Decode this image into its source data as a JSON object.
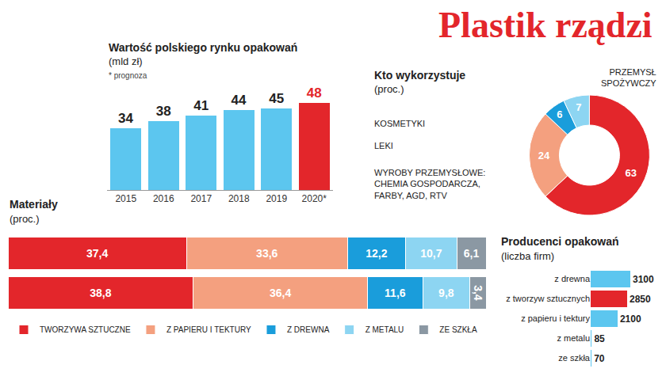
{
  "title": "Plastik rządzi",
  "chart_data": [
    {
      "type": "bar",
      "title": "Wartość polskiego rynku opakowań",
      "subtitle": "(mld zł)",
      "annotations": [
        "* prognoza"
      ],
      "categories": [
        "2015",
        "2016",
        "2017",
        "2018",
        "2019",
        "2020*"
      ],
      "values": [
        34,
        38,
        41,
        44,
        45,
        48
      ],
      "colors": [
        "#5cc6ef",
        "#5cc6ef",
        "#5cc6ef",
        "#5cc6ef",
        "#5cc6ef",
        "#e3262b"
      ],
      "ylim": [
        0,
        50
      ],
      "data_labels": true,
      "tick_labels": "x",
      "grid": false
    },
    {
      "type": "pie",
      "title": "Kto wykorzystuje",
      "subtitle": "(proc.)",
      "categories": [
        "PRZEMYSŁ SPOŻYWCZY",
        "WYROBY PRZEMYSŁOWE: CHEMIA GOSPODARCZA, FARBY, AGD, RTV",
        "LEKI",
        "KOSMETYKI"
      ],
      "values": [
        63,
        24,
        6,
        7
      ],
      "colors": [
        "#e3262b",
        "#f4a07f",
        "#1a9ddb",
        "#8dd5f2"
      ],
      "data_labels": true
    },
    {
      "type": "bar",
      "title": "Materiały",
      "subtitle": "(proc.)",
      "orientation": "horizontal",
      "stacked": true,
      "categories": [
        null,
        null
      ],
      "series": [
        {
          "name": "TWORZYWA SZTUCZNE",
          "color": "#e3262b",
          "values": [
            37.4,
            38.8
          ],
          "value_labels": [
            "37,4",
            "38,8"
          ]
        },
        {
          "name": "Z PAPIERU I TEKTURY",
          "color": "#f4a07f",
          "values": [
            33.6,
            36.4
          ],
          "value_labels": [
            "33,6",
            "36,4"
          ]
        },
        {
          "name": "Z DREWNA",
          "color": "#1a9ddb",
          "values": [
            12.2,
            11.6
          ],
          "value_labels": [
            "12,2",
            "11,6"
          ]
        },
        {
          "name": "Z METALU",
          "color": "#8dd5f2",
          "values": [
            10.7,
            9.8
          ],
          "value_labels": [
            "10,7",
            "9,8"
          ]
        },
        {
          "name": "ZE SZKŁA",
          "color": "#8b98a3",
          "values": [
            6.1,
            3.4
          ],
          "value_labels": [
            "6,1",
            "3,4"
          ]
        }
      ],
      "xlim": [
        0,
        100
      ],
      "data_labels": true,
      "tick_labels": false,
      "legend": "bottom"
    },
    {
      "type": "bar",
      "title": "Producenci opakowań",
      "subtitle": "(liczba firm)",
      "orientation": "horizontal",
      "categories": [
        "z drewna",
        "z tworzyw sztucznych",
        "z papieru i tektury",
        "z metalu",
        "ze szkła"
      ],
      "values": [
        3100,
        2850,
        2100,
        85,
        70
      ],
      "colors": [
        "#5cc6ef",
        "#e3262b",
        "#5cc6ef",
        "#5cc6ef",
        "#5cc6ef"
      ],
      "xlim": [
        0,
        3100
      ],
      "data_labels": true,
      "tick_labels": "y"
    }
  ]
}
